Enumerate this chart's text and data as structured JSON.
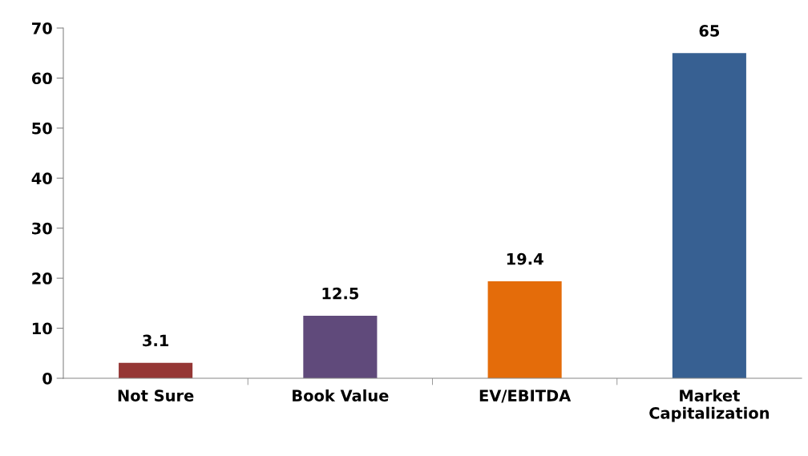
{
  "chart_data": {
    "type": "bar",
    "categories": [
      "Not Sure",
      "Book Value",
      "EV/EBITDA",
      "Market\nCapitalization"
    ],
    "values": [
      3.1,
      12.5,
      19.4,
      65
    ],
    "colors": [
      "#953735",
      "#604a7b",
      "#e46c0a",
      "#376092"
    ],
    "ylim": [
      0,
      70
    ],
    "yticks": [
      0,
      10,
      20,
      30,
      40,
      50,
      60,
      70
    ],
    "grid": false,
    "data_labels": true
  }
}
